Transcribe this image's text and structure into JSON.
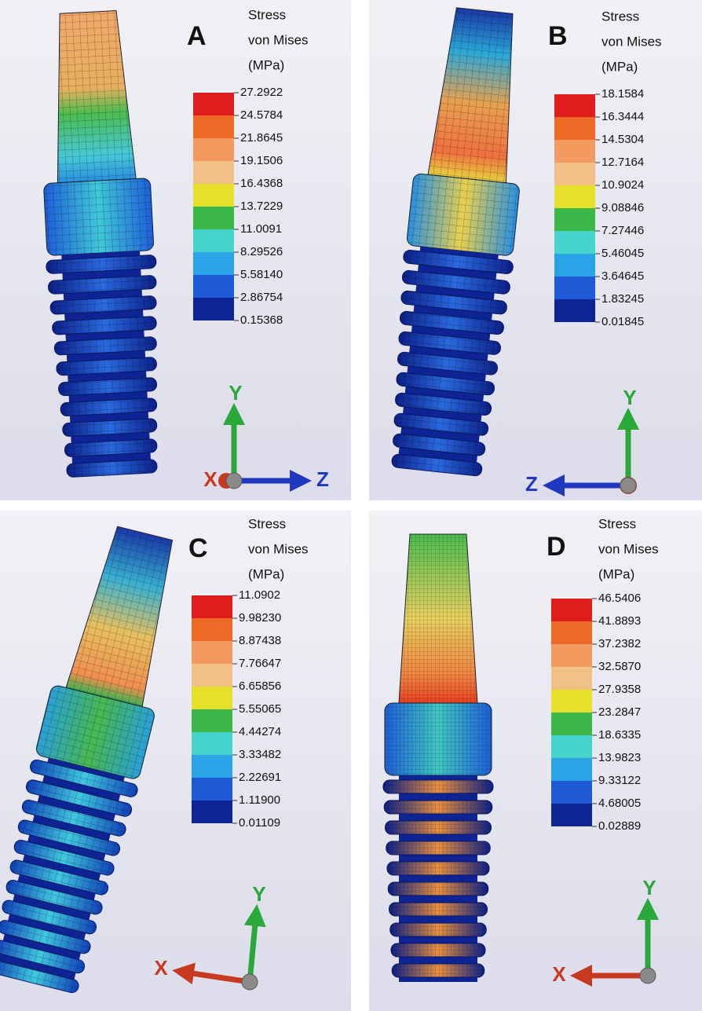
{
  "panels": [
    {
      "label": "A",
      "legend": {
        "title": [
          "Stress",
          "von Mises",
          "(MPa)"
        ],
        "values": [
          "27.2922",
          "24.5784",
          "21.8645",
          "19.1506",
          "16.4368",
          "13.7229",
          "11.0091",
          "8.29526",
          "5.58140",
          "2.86754",
          "0.15368"
        ]
      },
      "axes": [
        "X",
        "Y",
        "Z"
      ]
    },
    {
      "label": "B",
      "legend": {
        "title": [
          "Stress",
          "von Mises",
          "(MPa)"
        ],
        "values": [
          "18.1584",
          "16.3444",
          "14.5304",
          "12.7164",
          "10.9024",
          "9.08846",
          "7.27446",
          "5.46045",
          "3.64645",
          "1.83245",
          "0.01845"
        ]
      },
      "axes": [
        "Z",
        "Y"
      ]
    },
    {
      "label": "C",
      "legend": {
        "title": [
          "Stress",
          "von Mises",
          "(MPa)"
        ],
        "values": [
          "11.0902",
          "9.98230",
          "8.87438",
          "7.76647",
          "6.65856",
          "5.55065",
          "4.44274",
          "3.33482",
          "2.22691",
          "1.11900",
          "0.01109"
        ]
      },
      "axes": [
        "X",
        "Y"
      ]
    },
    {
      "label": "D",
      "legend": {
        "title": [
          "Stress",
          "von Mises",
          "(MPa)"
        ],
        "values": [
          "46.5406",
          "41.8893",
          "37.2382",
          "32.5870",
          "27.9358",
          "23.2847",
          "18.6335",
          "13.9823",
          "9.33122",
          "4.68005",
          "0.02889"
        ]
      },
      "axes": [
        "X",
        "Y"
      ]
    }
  ]
}
